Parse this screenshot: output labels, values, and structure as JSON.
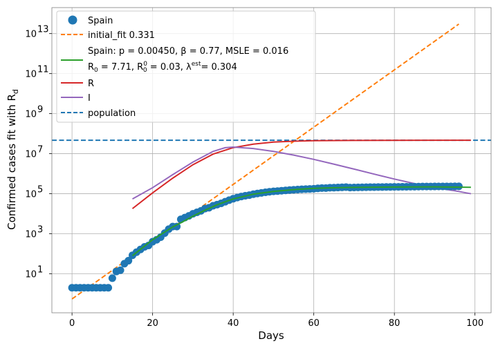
{
  "chart_data": {
    "type": "line",
    "xlabel": "Days",
    "ylabel": "Confirmed cases fit with R",
    "ylabel_subscript": "d",
    "yscale": "log",
    "xlim": [
      -5,
      104
    ],
    "ylim_log10": [
      -0.95,
      14.3
    ],
    "grid": true,
    "legend_position": "upper-left",
    "x_ticks": [
      0,
      20,
      40,
      60,
      80,
      100
    ],
    "x_tick_labels": [
      "0",
      "20",
      "40",
      "60",
      "80",
      "100"
    ],
    "y_ticks_exp": [
      1,
      3,
      5,
      7,
      9,
      11,
      13
    ],
    "y_tick_labels": [
      "10",
      "10",
      "10",
      "10",
      "10",
      "10",
      "10"
    ],
    "y_tick_exponents": [
      "1",
      "3",
      "5",
      "7",
      "9",
      "11",
      "13"
    ],
    "legend": {
      "spain": "Spain",
      "initial_fit": "initial_fit 0.331",
      "fit_line1": "Spain: p = 0.00450,  β =  0.77, MSLE = 0.016",
      "fit_line2_a": " R",
      "fit_line2_a_sub": "0",
      "fit_line2_b": " = 7.71, R",
      "fit_line2_b_sup": "0",
      "fit_line2_b_sub": "0",
      "fit_line2_c": " = 0.03, λ",
      "fit_line2_c_sup": "est",
      "fit_line2_d": "= 0.304",
      "r": "R",
      "i": "I",
      "population": "population"
    },
    "colors": {
      "spain": "#1f77b4",
      "initial_fit": "#ff7f0e",
      "fit": "#2ca02c",
      "r": "#d62728",
      "i": "#9467bd",
      "population": "#1f77b4"
    },
    "series": [
      {
        "name": "Spain",
        "kind": "points",
        "x": [
          0,
          1,
          2,
          3,
          4,
          5,
          6,
          7,
          8,
          9,
          10,
          11,
          12,
          13,
          14,
          15,
          16,
          17,
          18,
          19,
          20,
          21,
          22,
          23,
          24,
          25,
          26,
          27,
          28,
          29,
          30,
          31,
          32,
          33,
          34,
          35,
          36,
          37,
          38,
          39,
          40,
          41,
          42,
          43,
          44,
          45,
          46,
          47,
          48,
          49,
          50,
          51,
          52,
          53,
          54,
          55,
          56,
          57,
          58,
          59,
          60,
          61,
          62,
          63,
          64,
          65,
          66,
          67,
          68,
          69,
          70,
          71,
          72,
          73,
          74,
          75,
          76,
          77,
          78,
          79,
          80,
          81,
          82,
          83,
          84,
          85,
          86,
          87,
          88,
          89,
          90,
          91,
          92,
          93,
          94,
          95,
          96
        ],
        "y": [
          2,
          2,
          2,
          2,
          2,
          2,
          2,
          2,
          2,
          2,
          6,
          13,
          15,
          32,
          45,
          84,
          120,
          165,
          222,
          259,
          400,
          500,
          673,
          1073,
          1695,
          2277,
          2277,
          5232,
          6391,
          7798,
          9942,
          11748,
          13910,
          17963,
          19980,
          24926,
          28572,
          33089,
          39673,
          47610,
          56188,
          64059,
          72248,
          78797,
          85195,
          94417,
          102136,
          110238,
          117710,
          124736,
          130759,
          135032,
          140510,
          146690,
          152446,
          157022,
          161852,
          166019,
          169496,
          172541,
          177644,
          184948,
          190839,
          191726,
          198674,
          200210,
          204178,
          208389,
          213024,
          202990,
          205905,
          207634,
          209465,
          210773,
          212917,
          213435,
          215216,
          216582,
          217466,
          218011,
          219329,
          220325,
          221447,
          222857,
          223578,
          224350,
          227436,
          228030,
          228691,
          229540,
          230183,
          230698,
          231350,
          231606,
          232037,
          232555,
          233037
        ]
      },
      {
        "name": "initial_fit 0.331",
        "kind": "line-dashed",
        "x": [
          0,
          96
        ],
        "y": [
          0.55,
          30000000000000.0
        ]
      },
      {
        "name": "Spain: p = 0.00450,  β =  0.77, MSLE = 0.016",
        "kind": "line",
        "x": [
          15,
          20,
          25,
          27,
          30,
          33,
          36,
          40,
          45,
          50,
          55,
          60,
          65,
          70,
          80,
          90,
          99
        ],
        "y": [
          80,
          500,
          2200,
          3500,
          7500,
          15000,
          28000,
          55000,
          95000,
          130000,
          160000,
          185000,
          200000,
          207000,
          215000,
          220000,
          210000
        ]
      },
      {
        "name": "R",
        "kind": "line",
        "x": [
          15,
          20,
          25,
          30,
          35,
          40,
          45,
          50,
          55,
          60,
          70,
          80,
          90,
          99
        ],
        "y": [
          18000,
          110000,
          600000,
          2800000,
          9500000,
          20000000,
          30000000,
          38000000,
          42000000,
          44500000,
          46000000,
          46500000,
          46700000,
          46800000
        ]
      },
      {
        "name": "I",
        "kind": "line",
        "x": [
          15,
          20,
          25,
          30,
          35,
          38,
          40,
          45,
          50,
          55,
          60,
          65,
          70,
          75,
          80,
          85,
          90,
          95,
          99
        ],
        "y": [
          55000,
          200000,
          900000,
          3800000,
          13000000,
          20000000,
          21500000,
          18000000,
          13000000,
          8500000,
          5200000,
          3000000,
          1700000,
          950000,
          540000,
          320000,
          200000,
          140000,
          100000
        ]
      },
      {
        "name": "population",
        "kind": "hline-dashed",
        "x": [
          -5,
          104
        ],
        "y": [
          47000000,
          47000000
        ]
      }
    ]
  }
}
